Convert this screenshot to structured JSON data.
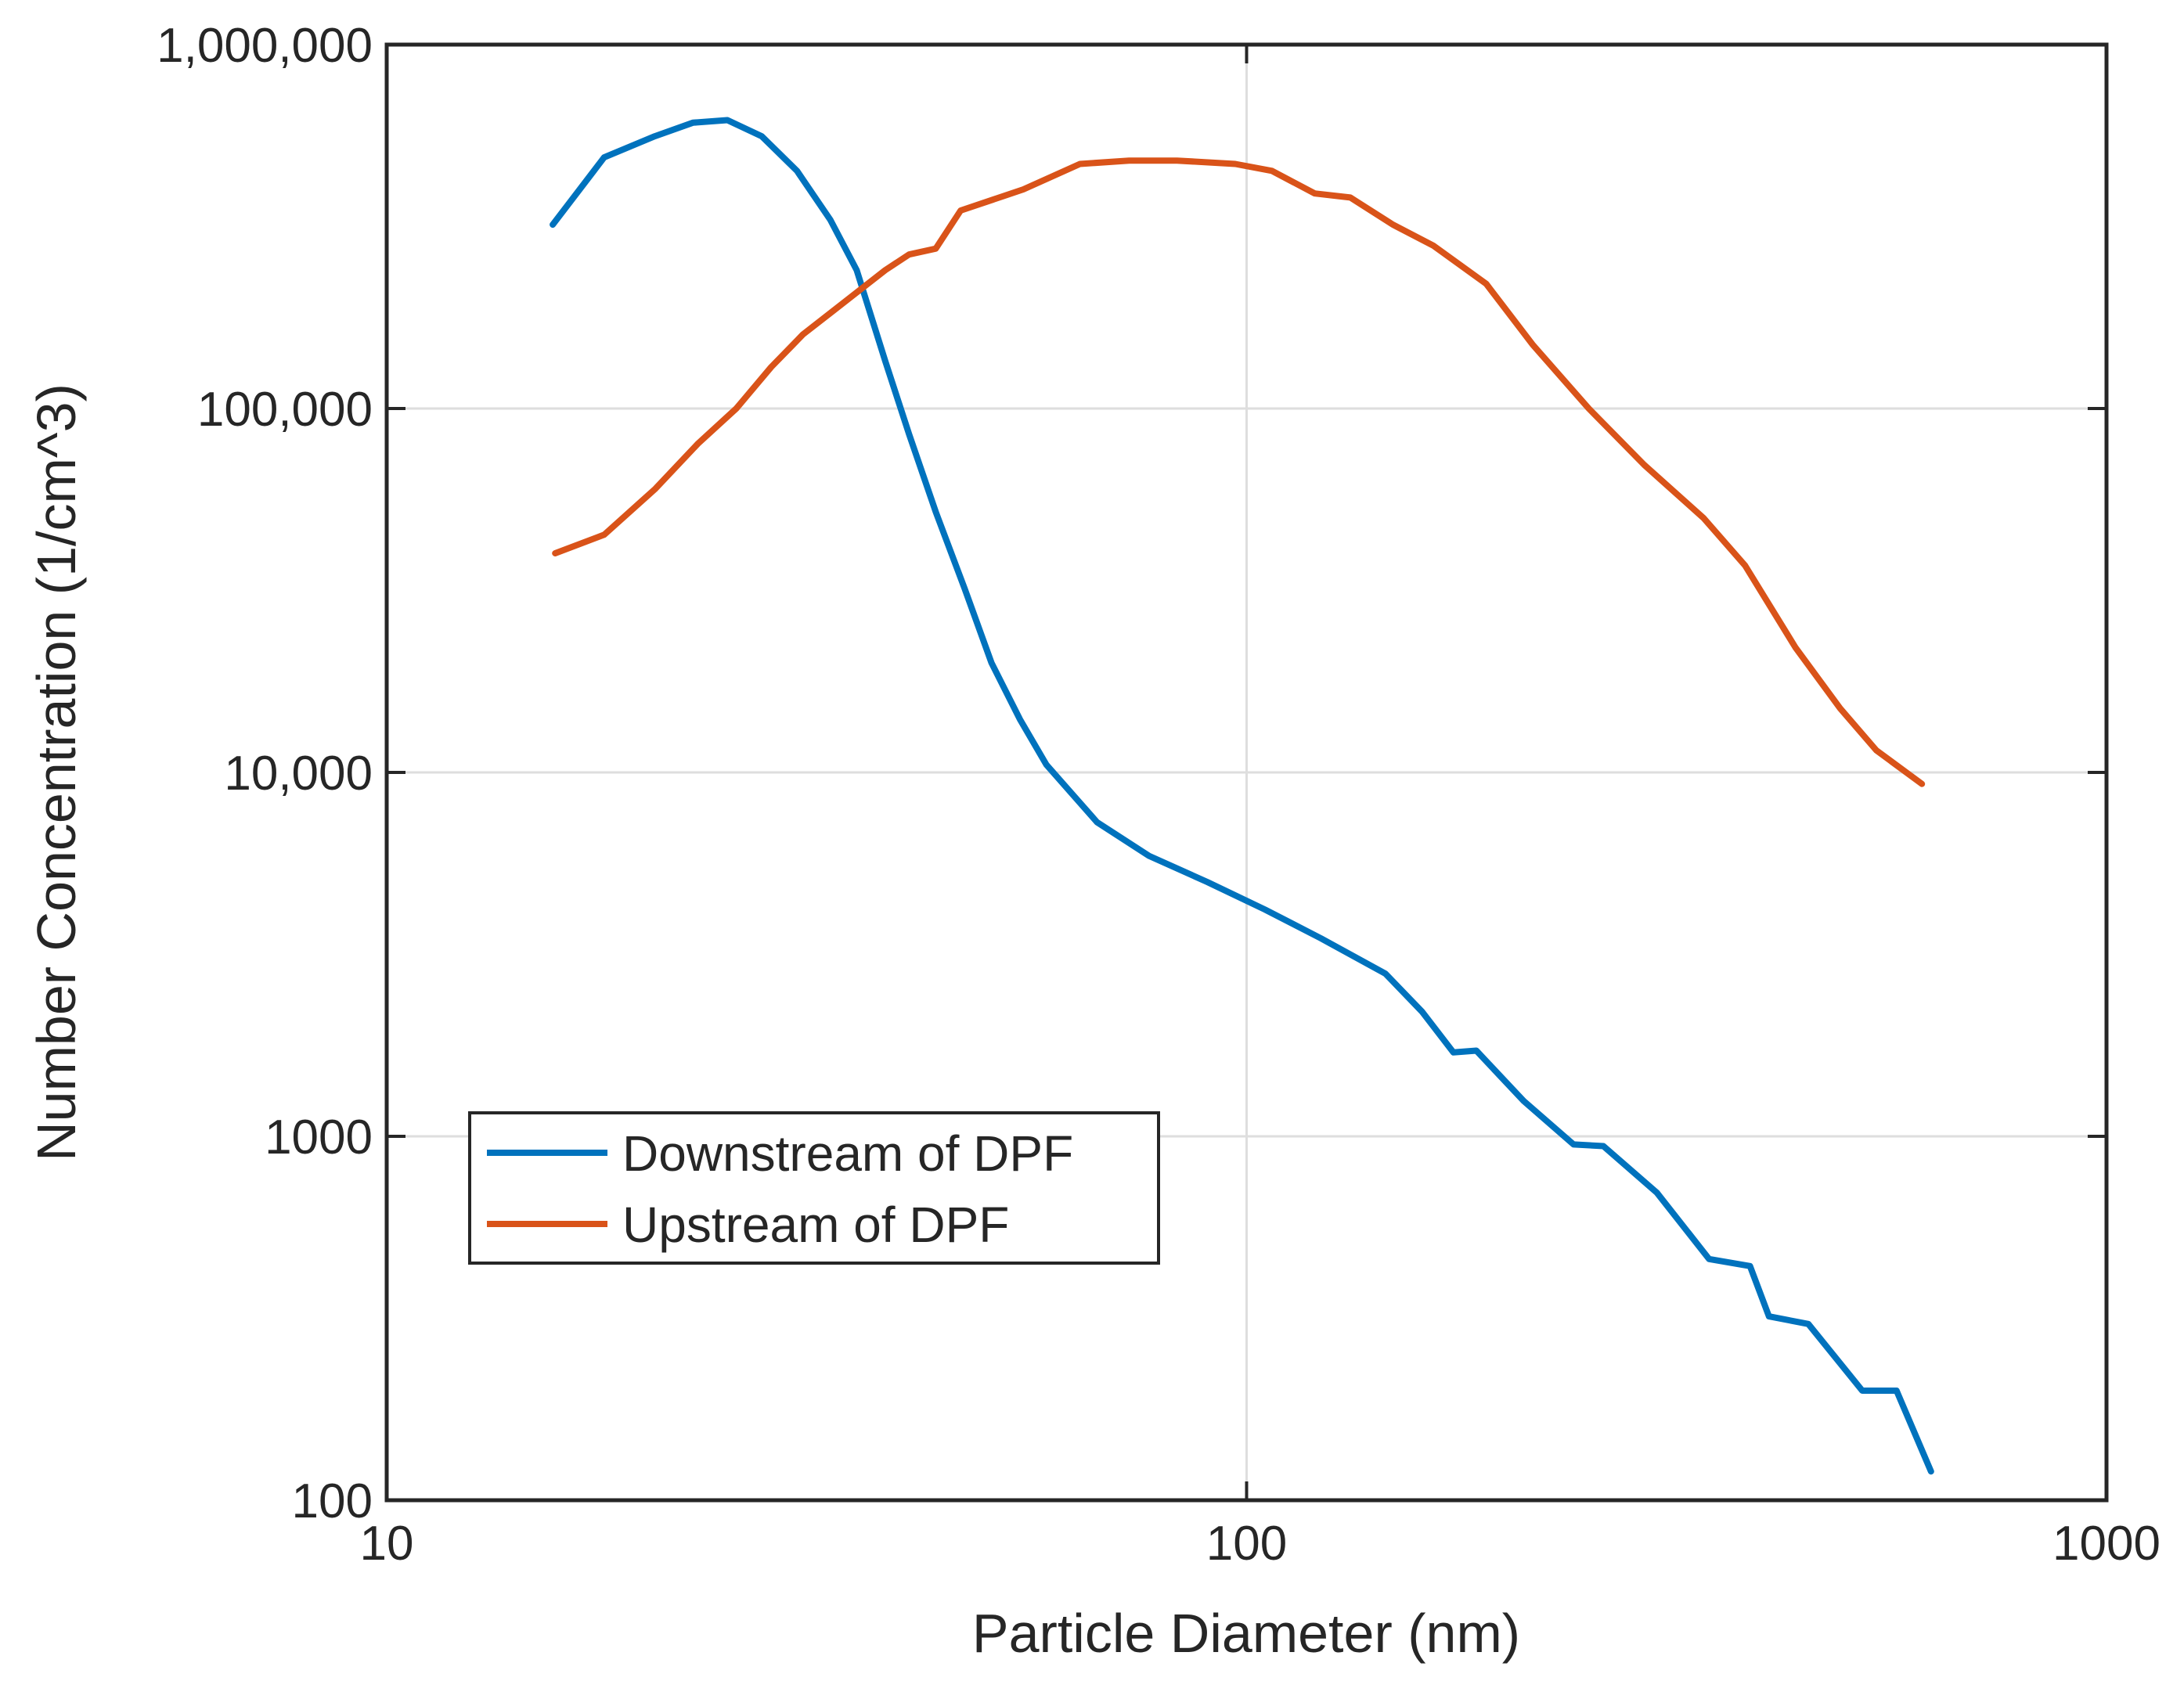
{
  "chart_data": {
    "type": "line",
    "title": "",
    "xlabel": "Particle Diameter (nm)",
    "ylabel": "Number Concentration (1/cm^3)",
    "xscale": "log",
    "yscale": "log",
    "xlim": [
      10,
      1000
    ],
    "ylim": [
      100,
      1000000
    ],
    "grid": true,
    "legend_position": "bottom-left",
    "x_ticks": [
      {
        "value": 10,
        "label": "10"
      },
      {
        "value": 100,
        "label": "100"
      },
      {
        "value": 1000,
        "label": "1000"
      }
    ],
    "y_ticks": [
      {
        "value": 100,
        "label": "100"
      },
      {
        "value": 1000,
        "label": "1000"
      },
      {
        "value": 10000,
        "label": "10,000"
      },
      {
        "value": 100000,
        "label": "100,000"
      },
      {
        "value": 1000000,
        "label": "1,000,000"
      }
    ],
    "series": [
      {
        "name": "Downstream of DPF",
        "color": "#0072BD",
        "points": [
          [
            15.6,
            320000
          ],
          [
            17.9,
            490000
          ],
          [
            20.5,
            560000
          ],
          [
            22.7,
            610000
          ],
          [
            24.9,
            620000
          ],
          [
            27.3,
            560000
          ],
          [
            30.0,
            450000
          ],
          [
            32.8,
            330000
          ],
          [
            35.2,
            240000
          ],
          [
            38.0,
            135000
          ],
          [
            40.5,
            85000
          ],
          [
            43.5,
            52000
          ],
          [
            47.0,
            32000
          ],
          [
            50.5,
            20000
          ],
          [
            54.5,
            14000
          ],
          [
            58.5,
            10500
          ],
          [
            67.0,
            7300
          ],
          [
            77.0,
            5900
          ],
          [
            90.0,
            5000
          ],
          [
            105.0,
            4200
          ],
          [
            122.0,
            3500
          ],
          [
            145.0,
            2800
          ],
          [
            160.0,
            2200
          ],
          [
            174.0,
            1700
          ],
          [
            185.0,
            1720
          ],
          [
            210.0,
            1250
          ],
          [
            240.0,
            950
          ],
          [
            260.0,
            940
          ],
          [
            300.0,
            700
          ],
          [
            345.0,
            460
          ],
          [
            385.0,
            440
          ],
          [
            405.0,
            320
          ],
          [
            450.0,
            305
          ],
          [
            520.0,
            200
          ],
          [
            570.0,
            200
          ],
          [
            625.0,
            120
          ]
        ]
      },
      {
        "name": "Upstream of DPF",
        "color": "#D95319",
        "points": [
          [
            15.7,
            40000
          ],
          [
            17.9,
            45000
          ],
          [
            20.5,
            60000
          ],
          [
            23.0,
            80000
          ],
          [
            25.5,
            100000
          ],
          [
            28.0,
            130000
          ],
          [
            30.5,
            160000
          ],
          [
            33.0,
            185000
          ],
          [
            38.0,
            240000
          ],
          [
            40.5,
            265000
          ],
          [
            43.5,
            275000
          ],
          [
            46.5,
            350000
          ],
          [
            55.0,
            400000
          ],
          [
            64.0,
            470000
          ],
          [
            73.0,
            480000
          ],
          [
            83.0,
            480000
          ],
          [
            97.0,
            470000
          ],
          [
            107.0,
            450000
          ],
          [
            120.0,
            390000
          ],
          [
            132.0,
            380000
          ],
          [
            148.0,
            320000
          ],
          [
            165.0,
            280000
          ],
          [
            190.0,
            220000
          ],
          [
            215.0,
            150000
          ],
          [
            250.0,
            100000
          ],
          [
            290.0,
            70000
          ],
          [
            340.0,
            50000
          ],
          [
            380.0,
            37000
          ],
          [
            435.0,
            22000
          ],
          [
            490.0,
            15000
          ],
          [
            540.0,
            11500
          ],
          [
            610.0,
            9300
          ]
        ]
      }
    ]
  }
}
